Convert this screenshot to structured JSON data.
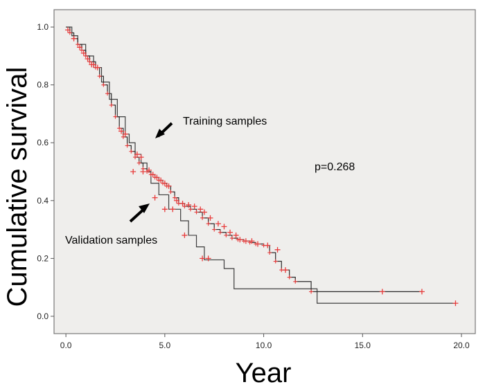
{
  "chart_data": {
    "type": "line",
    "title": "",
    "xlabel": "Year",
    "ylabel": "Cumulative survival",
    "xlim": [
      -0.6,
      20.7
    ],
    "ylim": [
      -0.06,
      1.06
    ],
    "x_ticks": [
      0.0,
      5.0,
      10.0,
      15.0,
      20.0
    ],
    "x_tick_labels": [
      "0.0",
      "5.0",
      "10.0",
      "15.0",
      "20.0"
    ],
    "y_ticks": [
      0.0,
      0.2,
      0.4,
      0.6,
      0.8,
      1.0
    ],
    "y_tick_labels": [
      "0.0",
      "0.2",
      "0.4",
      "0.6",
      "0.8",
      "1.0"
    ],
    "grid": false,
    "series": [
      {
        "name": "Training samples",
        "color": "#e83a3a",
        "step_x": [
          0,
          0.2,
          0.4,
          0.6,
          0.8,
          1.0,
          1.2,
          1.5,
          1.7,
          1.9,
          2.1,
          2.3,
          2.5,
          2.7,
          2.9,
          3.1,
          3.3,
          3.5,
          3.7,
          3.9,
          4.1,
          4.3,
          4.5,
          4.7,
          4.9,
          5.1,
          5.3,
          5.5,
          5.7,
          6.0,
          6.3,
          6.6,
          6.9,
          7.2,
          7.5,
          7.8,
          8.1,
          8.4,
          8.7,
          9.0,
          9.3,
          9.6,
          10.0,
          10.3,
          10.6,
          10.9,
          11.3,
          11.6,
          12.4,
          18.0
        ],
        "step_y": [
          1.0,
          0.98,
          0.96,
          0.94,
          0.92,
          0.9,
          0.88,
          0.86,
          0.83,
          0.8,
          0.77,
          0.73,
          0.69,
          0.65,
          0.62,
          0.59,
          0.57,
          0.55,
          0.53,
          0.51,
          0.5,
          0.49,
          0.48,
          0.47,
          0.46,
          0.45,
          0.43,
          0.41,
          0.39,
          0.38,
          0.37,
          0.36,
          0.34,
          0.32,
          0.3,
          0.29,
          0.28,
          0.27,
          0.265,
          0.26,
          0.255,
          0.25,
          0.245,
          0.22,
          0.19,
          0.16,
          0.135,
          0.12,
          0.085,
          0.085
        ],
        "censor_x": [
          0.1,
          0.4,
          0.7,
          0.9,
          1.1,
          1.3,
          1.4,
          1.6,
          2.8,
          3.0,
          3.6,
          3.8,
          4.2,
          4.4,
          4.6,
          4.8,
          5.0,
          5.2,
          5.6,
          5.9,
          6.2,
          6.5,
          6.8,
          7.0,
          7.3,
          7.7,
          8.0,
          8.3,
          8.6,
          8.8,
          9.1,
          9.4,
          9.7,
          10.2,
          10.7,
          11.1,
          16.0,
          18.0
        ],
        "censor_y": [
          0.99,
          0.96,
          0.93,
          0.91,
          0.89,
          0.87,
          0.87,
          0.86,
          0.64,
          0.63,
          0.56,
          0.55,
          0.505,
          0.49,
          0.48,
          0.47,
          0.46,
          0.45,
          0.4,
          0.39,
          0.385,
          0.38,
          0.37,
          0.36,
          0.34,
          0.32,
          0.31,
          0.29,
          0.28,
          0.265,
          0.26,
          0.26,
          0.25,
          0.245,
          0.23,
          0.16,
          0.085,
          0.085
        ]
      },
      {
        "name": "Validation samples",
        "color": "#333333",
        "step_x": [
          0,
          0.3,
          0.6,
          1.0,
          1.4,
          1.8,
          2.2,
          2.6,
          3.0,
          3.2,
          3.5,
          3.8,
          4.1,
          4.3,
          4.7,
          5.2,
          5.8,
          6.2,
          6.6,
          7.0,
          8.0,
          8.5,
          12.7,
          19.7
        ],
        "step_y": [
          1.0,
          0.97,
          0.94,
          0.9,
          0.86,
          0.81,
          0.75,
          0.69,
          0.63,
          0.6,
          0.56,
          0.53,
          0.5,
          0.46,
          0.42,
          0.37,
          0.33,
          0.28,
          0.24,
          0.195,
          0.165,
          0.095,
          0.045,
          0.045
        ],
        "censor_x": [
          3.4,
          3.9,
          4.5,
          5.0,
          5.4,
          6.0,
          6.9,
          7.2,
          19.7
        ],
        "censor_y": [
          0.5,
          0.5,
          0.41,
          0.37,
          0.37,
          0.28,
          0.2,
          0.2,
          0.045
        ]
      }
    ],
    "annotations": [
      {
        "text": "Training samples",
        "x": 4.1,
        "y": 0.64,
        "arrow_to_x": 4.3,
        "arrow_to_y": 0.62
      },
      {
        "text": "Validation samples",
        "x": 4.5,
        "y": 0.42,
        "arrow_to_x": 4.1,
        "arrow_to_y": 0.43
      },
      {
        "text": "p=0.268",
        "x": 14.2,
        "y": 0.52
      }
    ]
  }
}
